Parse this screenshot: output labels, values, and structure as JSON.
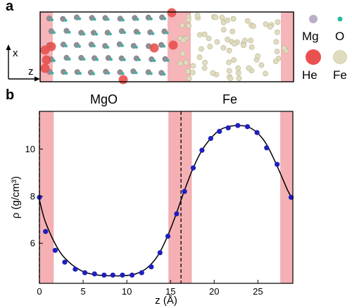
{
  "panels": {
    "a": {
      "letter": "a"
    },
    "b": {
      "letter": "b"
    }
  },
  "panel_a": {
    "axes": {
      "x_label": "x",
      "z_label": "z"
    },
    "legend": [
      {
        "label": "Mg",
        "color": "#b9adc8"
      },
      {
        "label": "O",
        "color": "#2ab8a2"
      },
      {
        "label": "He",
        "color": "#e8514f"
      },
      {
        "label": "Fe",
        "color": "#e0dcbf"
      }
    ]
  },
  "regions": {
    "left": "MgO",
    "right": "Fe"
  },
  "colors": {
    "interface_band": "#f4a3a6",
    "points": "#1f1fbf",
    "curve": "#000000"
  },
  "chart_data": {
    "type": "scatter",
    "xlabel": "z (Å)",
    "ylabel": "ρ (g/cm³)",
    "xlim": [
      0,
      29
    ],
    "ylim": [
      4.3,
      11.6
    ],
    "xticks": [
      0,
      5,
      10,
      15,
      20,
      25
    ],
    "yticks": [
      6,
      8,
      10
    ],
    "interface_bands": [
      [
        0,
        1.6
      ],
      [
        14.8,
        17.4
      ],
      [
        27.6,
        29
      ]
    ],
    "dashed_lines": [
      0,
      16.2
    ],
    "points": [
      {
        "x": 0.0,
        "y": 7.95
      },
      {
        "x": 0.7,
        "y": 6.5
      },
      {
        "x": 1.8,
        "y": 5.7
      },
      {
        "x": 2.9,
        "y": 5.2
      },
      {
        "x": 4.1,
        "y": 4.9
      },
      {
        "x": 5.2,
        "y": 4.75
      },
      {
        "x": 6.3,
        "y": 4.7
      },
      {
        "x": 7.4,
        "y": 4.65
      },
      {
        "x": 8.4,
        "y": 4.65
      },
      {
        "x": 9.5,
        "y": 4.65
      },
      {
        "x": 10.6,
        "y": 4.65
      },
      {
        "x": 11.7,
        "y": 4.75
      },
      {
        "x": 12.8,
        "y": 5.0
      },
      {
        "x": 13.8,
        "y": 5.6
      },
      {
        "x": 14.7,
        "y": 6.3
      },
      {
        "x": 15.7,
        "y": 7.25
      },
      {
        "x": 16.6,
        "y": 8.2
      },
      {
        "x": 17.6,
        "y": 9.2
      },
      {
        "x": 18.6,
        "y": 9.95
      },
      {
        "x": 19.6,
        "y": 10.45
      },
      {
        "x": 20.6,
        "y": 10.75
      },
      {
        "x": 21.6,
        "y": 10.9
      },
      {
        "x": 22.7,
        "y": 11.0
      },
      {
        "x": 23.8,
        "y": 10.95
      },
      {
        "x": 24.9,
        "y": 10.7
      },
      {
        "x": 26.0,
        "y": 10.05
      },
      {
        "x": 27.2,
        "y": 9.35
      },
      {
        "x": 28.8,
        "y": 7.95
      }
    ],
    "curve": [
      {
        "x": 0,
        "y": 7.85
      },
      {
        "x": 0.6,
        "y": 7.0
      },
      {
        "x": 1.5,
        "y": 6.2
      },
      {
        "x": 2.5,
        "y": 5.55
      },
      {
        "x": 3.7,
        "y": 5.1
      },
      {
        "x": 5,
        "y": 4.8
      },
      {
        "x": 6.5,
        "y": 4.66
      },
      {
        "x": 8,
        "y": 4.62
      },
      {
        "x": 9.5,
        "y": 4.62
      },
      {
        "x": 11,
        "y": 4.7
      },
      {
        "x": 12.3,
        "y": 4.95
      },
      {
        "x": 13.5,
        "y": 5.45
      },
      {
        "x": 14.6,
        "y": 6.25
      },
      {
        "x": 15.6,
        "y": 7.2
      },
      {
        "x": 16.6,
        "y": 8.25
      },
      {
        "x": 17.6,
        "y": 9.2
      },
      {
        "x": 18.6,
        "y": 9.95
      },
      {
        "x": 19.6,
        "y": 10.45
      },
      {
        "x": 20.6,
        "y": 10.8
      },
      {
        "x": 21.6,
        "y": 10.95
      },
      {
        "x": 22.7,
        "y": 11.0
      },
      {
        "x": 23.8,
        "y": 10.95
      },
      {
        "x": 24.9,
        "y": 10.7
      },
      {
        "x": 25.9,
        "y": 10.25
      },
      {
        "x": 26.8,
        "y": 9.6
      },
      {
        "x": 27.7,
        "y": 8.85
      },
      {
        "x": 28.4,
        "y": 8.25
      },
      {
        "x": 29,
        "y": 7.85
      }
    ]
  }
}
